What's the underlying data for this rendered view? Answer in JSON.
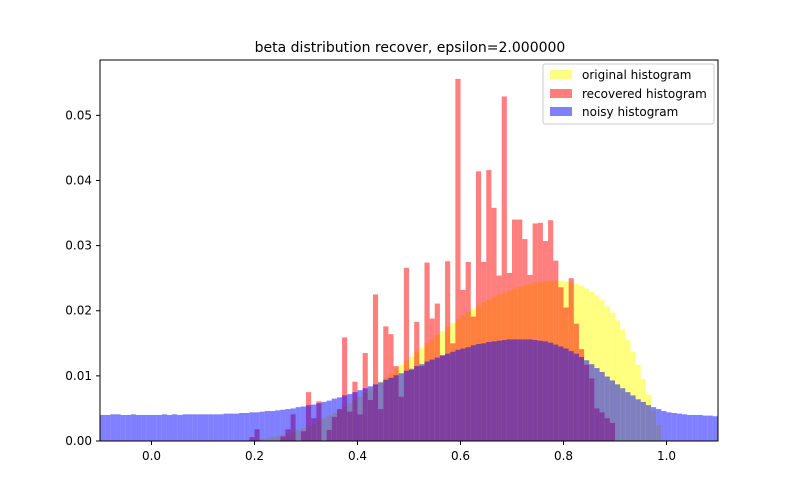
{
  "chart_data": {
    "type": "bar",
    "title": "beta distribution recover, epsilon=2.000000",
    "xlabel": "",
    "ylabel": "",
    "xlim": [
      -0.1,
      1.1
    ],
    "ylim": [
      0,
      0.0585
    ],
    "grid": false,
    "legend_placement": "top-right",
    "xticks": [
      "0.0",
      "0.2",
      "0.4",
      "0.6",
      "0.8",
      "1.0"
    ],
    "yticks": [
      "0.00",
      "0.01",
      "0.02",
      "0.03",
      "0.04",
      "0.05"
    ],
    "bin_width": 0.01,
    "series": [
      {
        "name": "original histogram",
        "color": "#ffff00",
        "opacity": 0.5,
        "bins": [
          [
            0.19,
            0.0001
          ],
          [
            0.2,
            0.0002
          ],
          [
            0.21,
            0.0003
          ],
          [
            0.22,
            0.0004
          ],
          [
            0.23,
            0.0006
          ],
          [
            0.24,
            0.0008
          ],
          [
            0.25,
            0.001
          ],
          [
            0.26,
            0.0012
          ],
          [
            0.27,
            0.0014
          ],
          [
            0.28,
            0.0017
          ],
          [
            0.29,
            0.002
          ],
          [
            0.3,
            0.0023
          ],
          [
            0.31,
            0.0027
          ],
          [
            0.32,
            0.0031
          ],
          [
            0.33,
            0.0035
          ],
          [
            0.34,
            0.0039
          ],
          [
            0.35,
            0.0043
          ],
          [
            0.36,
            0.0048
          ],
          [
            0.37,
            0.0053
          ],
          [
            0.38,
            0.0058
          ],
          [
            0.39,
            0.0063
          ],
          [
            0.4,
            0.0068
          ],
          [
            0.41,
            0.0074
          ],
          [
            0.42,
            0.008
          ],
          [
            0.43,
            0.0086
          ],
          [
            0.44,
            0.0092
          ],
          [
            0.45,
            0.0098
          ],
          [
            0.46,
            0.0104
          ],
          [
            0.47,
            0.0111
          ],
          [
            0.48,
            0.0117
          ],
          [
            0.49,
            0.0124
          ],
          [
            0.5,
            0.013
          ],
          [
            0.51,
            0.0137
          ],
          [
            0.52,
            0.0143
          ],
          [
            0.53,
            0.015
          ],
          [
            0.54,
            0.0156
          ],
          [
            0.55,
            0.0163
          ],
          [
            0.56,
            0.0169
          ],
          [
            0.57,
            0.0175
          ],
          [
            0.58,
            0.0181
          ],
          [
            0.59,
            0.0187
          ],
          [
            0.6,
            0.0193
          ],
          [
            0.61,
            0.0198
          ],
          [
            0.62,
            0.0203
          ],
          [
            0.63,
            0.0208
          ],
          [
            0.64,
            0.0213
          ],
          [
            0.65,
            0.0217
          ],
          [
            0.66,
            0.0221
          ],
          [
            0.67,
            0.0225
          ],
          [
            0.68,
            0.0228
          ],
          [
            0.69,
            0.0231
          ],
          [
            0.7,
            0.0234
          ],
          [
            0.71,
            0.0237
          ],
          [
            0.72,
            0.0239
          ],
          [
            0.73,
            0.0241
          ],
          [
            0.74,
            0.0243
          ],
          [
            0.75,
            0.0244
          ],
          [
            0.76,
            0.0245
          ],
          [
            0.77,
            0.0246
          ],
          [
            0.78,
            0.0246
          ],
          [
            0.79,
            0.0246
          ],
          [
            0.8,
            0.0245
          ],
          [
            0.81,
            0.0243
          ],
          [
            0.82,
            0.0241
          ],
          [
            0.83,
            0.0238
          ],
          [
            0.84,
            0.0234
          ],
          [
            0.85,
            0.0229
          ],
          [
            0.86,
            0.0223
          ],
          [
            0.87,
            0.0216
          ],
          [
            0.88,
            0.0207
          ],
          [
            0.89,
            0.0197
          ],
          [
            0.9,
            0.0185
          ],
          [
            0.91,
            0.0171
          ],
          [
            0.92,
            0.0155
          ],
          [
            0.93,
            0.0137
          ],
          [
            0.94,
            0.0117
          ],
          [
            0.95,
            0.0095
          ],
          [
            0.96,
            0.0071
          ],
          [
            0.97,
            0.0047
          ],
          [
            0.98,
            0.0025
          ]
        ]
      },
      {
        "name": "recovered histogram",
        "color": "#ff0000",
        "opacity": 0.5,
        "bins": [
          [
            0.19,
            0.0006
          ],
          [
            0.2,
            0.0018
          ],
          [
            0.25,
            0.0007
          ],
          [
            0.26,
            0.0018
          ],
          [
            0.27,
            0.0041
          ],
          [
            0.29,
            0.0015
          ],
          [
            0.3,
            0.0075
          ],
          [
            0.31,
            0.0035
          ],
          [
            0.32,
            0.0061
          ],
          [
            0.34,
            0.0017
          ],
          [
            0.35,
            0.0037
          ],
          [
            0.36,
            0.0049
          ],
          [
            0.37,
            0.0159
          ],
          [
            0.38,
            0.0045
          ],
          [
            0.39,
            0.0091
          ],
          [
            0.4,
            0.0041
          ],
          [
            0.41,
            0.0135
          ],
          [
            0.42,
            0.0063
          ],
          [
            0.43,
            0.0225
          ],
          [
            0.44,
            0.0049
          ],
          [
            0.45,
            0.0176
          ],
          [
            0.46,
            0.0164
          ],
          [
            0.47,
            0.0115
          ],
          [
            0.48,
            0.0068
          ],
          [
            0.49,
            0.0266
          ],
          [
            0.5,
            0.0109
          ],
          [
            0.51,
            0.0183
          ],
          [
            0.52,
            0.0115
          ],
          [
            0.53,
            0.0274
          ],
          [
            0.54,
            0.0188
          ],
          [
            0.55,
            0.0211
          ],
          [
            0.56,
            0.0132
          ],
          [
            0.57,
            0.0276
          ],
          [
            0.58,
            0.015
          ],
          [
            0.59,
            0.0556
          ],
          [
            0.6,
            0.0232
          ],
          [
            0.61,
            0.0275
          ],
          [
            0.62,
            0.0191
          ],
          [
            0.63,
            0.0414
          ],
          [
            0.64,
            0.0275
          ],
          [
            0.65,
            0.0416
          ],
          [
            0.66,
            0.0358
          ],
          [
            0.67,
            0.0254
          ],
          [
            0.68,
            0.0529
          ],
          [
            0.69,
            0.0258
          ],
          [
            0.7,
            0.034
          ],
          [
            0.71,
            0.034
          ],
          [
            0.72,
            0.031
          ],
          [
            0.73,
            0.0255
          ],
          [
            0.74,
            0.0334
          ],
          [
            0.75,
            0.0335
          ],
          [
            0.76,
            0.0307
          ],
          [
            0.77,
            0.0339
          ],
          [
            0.78,
            0.0277
          ],
          [
            0.79,
            0.0236
          ],
          [
            0.8,
            0.0205
          ],
          [
            0.81,
            0.025
          ],
          [
            0.82,
            0.018
          ],
          [
            0.83,
            0.0141
          ],
          [
            0.84,
            0.0117
          ],
          [
            0.85,
            0.0096
          ],
          [
            0.86,
            0.005
          ],
          [
            0.87,
            0.0044
          ],
          [
            0.88,
            0.0035
          ],
          [
            0.89,
            0.0028
          ]
        ]
      },
      {
        "name": "noisy histogram",
        "color": "#0000ff",
        "opacity": 0.5,
        "bins": [
          [
            -0.1,
            0.004
          ],
          [
            -0.09,
            0.004
          ],
          [
            -0.08,
            0.0041
          ],
          [
            -0.07,
            0.0041
          ],
          [
            -0.06,
            0.004
          ],
          [
            -0.05,
            0.004
          ],
          [
            -0.04,
            0.0041
          ],
          [
            -0.03,
            0.004
          ],
          [
            -0.02,
            0.004
          ],
          [
            -0.01,
            0.004
          ],
          [
            0.0,
            0.004
          ],
          [
            0.01,
            0.004
          ],
          [
            0.02,
            0.0041
          ],
          [
            0.03,
            0.004
          ],
          [
            0.04,
            0.0041
          ],
          [
            0.05,
            0.004
          ],
          [
            0.06,
            0.0041
          ],
          [
            0.07,
            0.0041
          ],
          [
            0.08,
            0.0041
          ],
          [
            0.09,
            0.0041
          ],
          [
            0.1,
            0.0041
          ],
          [
            0.11,
            0.0041
          ],
          [
            0.12,
            0.0041
          ],
          [
            0.13,
            0.0041
          ],
          [
            0.14,
            0.0042
          ],
          [
            0.15,
            0.0042
          ],
          [
            0.16,
            0.0042
          ],
          [
            0.17,
            0.0043
          ],
          [
            0.18,
            0.0043
          ],
          [
            0.19,
            0.0044
          ],
          [
            0.2,
            0.0044
          ],
          [
            0.21,
            0.0045
          ],
          [
            0.22,
            0.0046
          ],
          [
            0.23,
            0.0046
          ],
          [
            0.24,
            0.0047
          ],
          [
            0.25,
            0.0048
          ],
          [
            0.26,
            0.0049
          ],
          [
            0.27,
            0.005
          ],
          [
            0.28,
            0.0052
          ],
          [
            0.29,
            0.0053
          ],
          [
            0.3,
            0.0055
          ],
          [
            0.31,
            0.0056
          ],
          [
            0.32,
            0.0058
          ],
          [
            0.33,
            0.006
          ],
          [
            0.34,
            0.0062
          ],
          [
            0.35,
            0.0065
          ],
          [
            0.36,
            0.0067
          ],
          [
            0.37,
            0.007
          ],
          [
            0.38,
            0.0072
          ],
          [
            0.39,
            0.0075
          ],
          [
            0.4,
            0.0078
          ],
          [
            0.41,
            0.0081
          ],
          [
            0.42,
            0.0084
          ],
          [
            0.43,
            0.0087
          ],
          [
            0.44,
            0.009
          ],
          [
            0.45,
            0.0094
          ],
          [
            0.46,
            0.0097
          ],
          [
            0.47,
            0.0101
          ],
          [
            0.48,
            0.0104
          ],
          [
            0.49,
            0.0108
          ],
          [
            0.5,
            0.0111
          ],
          [
            0.51,
            0.0115
          ],
          [
            0.52,
            0.0118
          ],
          [
            0.53,
            0.0122
          ],
          [
            0.54,
            0.0125
          ],
          [
            0.55,
            0.0128
          ],
          [
            0.56,
            0.0131
          ],
          [
            0.57,
            0.0134
          ],
          [
            0.58,
            0.0137
          ],
          [
            0.59,
            0.014
          ],
          [
            0.6,
            0.0142
          ],
          [
            0.61,
            0.0144
          ],
          [
            0.62,
            0.0147
          ],
          [
            0.63,
            0.0149
          ],
          [
            0.64,
            0.015
          ],
          [
            0.65,
            0.0152
          ],
          [
            0.66,
            0.0153
          ],
          [
            0.67,
            0.0154
          ],
          [
            0.68,
            0.0155
          ],
          [
            0.69,
            0.0156
          ],
          [
            0.7,
            0.0156
          ],
          [
            0.71,
            0.0156
          ],
          [
            0.72,
            0.0156
          ],
          [
            0.73,
            0.0156
          ],
          [
            0.74,
            0.0155
          ],
          [
            0.75,
            0.0154
          ],
          [
            0.76,
            0.0153
          ],
          [
            0.77,
            0.0151
          ],
          [
            0.78,
            0.0148
          ],
          [
            0.79,
            0.0145
          ],
          [
            0.8,
            0.0142
          ],
          [
            0.81,
            0.0138
          ],
          [
            0.82,
            0.0134
          ],
          [
            0.83,
            0.0129
          ],
          [
            0.84,
            0.0124
          ],
          [
            0.85,
            0.0118
          ],
          [
            0.86,
            0.0112
          ],
          [
            0.87,
            0.0106
          ],
          [
            0.88,
            0.0099
          ],
          [
            0.89,
            0.0093
          ],
          [
            0.9,
            0.0087
          ],
          [
            0.91,
            0.0081
          ],
          [
            0.92,
            0.0075
          ],
          [
            0.93,
            0.007
          ],
          [
            0.94,
            0.0064
          ],
          [
            0.95,
            0.006
          ],
          [
            0.96,
            0.0055
          ],
          [
            0.97,
            0.0052
          ],
          [
            0.98,
            0.0049
          ],
          [
            0.99,
            0.0046
          ],
          [
            1.0,
            0.0044
          ],
          [
            1.01,
            0.0043
          ],
          [
            1.02,
            0.0042
          ],
          [
            1.03,
            0.0041
          ],
          [
            1.04,
            0.004
          ],
          [
            1.05,
            0.004
          ],
          [
            1.06,
            0.004
          ],
          [
            1.07,
            0.0039
          ],
          [
            1.08,
            0.0039
          ],
          [
            1.09,
            0.0038
          ]
        ]
      }
    ]
  }
}
